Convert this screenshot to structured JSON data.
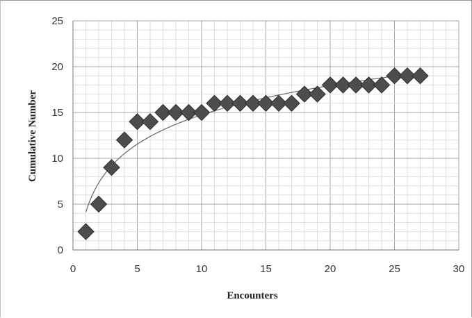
{
  "chart_data": {
    "type": "scatter",
    "title": "",
    "xlabel": "Encounters",
    "ylabel": "Cumulative Number",
    "xlim": [
      0,
      30
    ],
    "ylim": [
      0,
      25
    ],
    "x_ticks": [
      0,
      5,
      10,
      15,
      20,
      25,
      30
    ],
    "y_ticks": [
      0,
      5,
      10,
      15,
      20,
      25
    ],
    "grid": true,
    "minor_grid": true,
    "marker": "diamond",
    "marker_color": "#4d4d4d",
    "trendline": {
      "type": "logarithmic",
      "color": "#666666"
    },
    "series": [
      {
        "x": [
          1,
          2,
          3,
          4,
          5,
          6,
          7,
          8,
          9,
          10,
          11,
          12,
          13,
          14,
          15,
          16,
          17,
          18,
          19,
          20,
          21,
          22,
          23,
          24,
          25,
          26,
          27
        ],
        "y": [
          2,
          5,
          9,
          12,
          14,
          14,
          15,
          15,
          15,
          15,
          16,
          16,
          16,
          16,
          16,
          16,
          16,
          17,
          17,
          18,
          18,
          18,
          18,
          18,
          19,
          19,
          19
        ]
      }
    ]
  }
}
